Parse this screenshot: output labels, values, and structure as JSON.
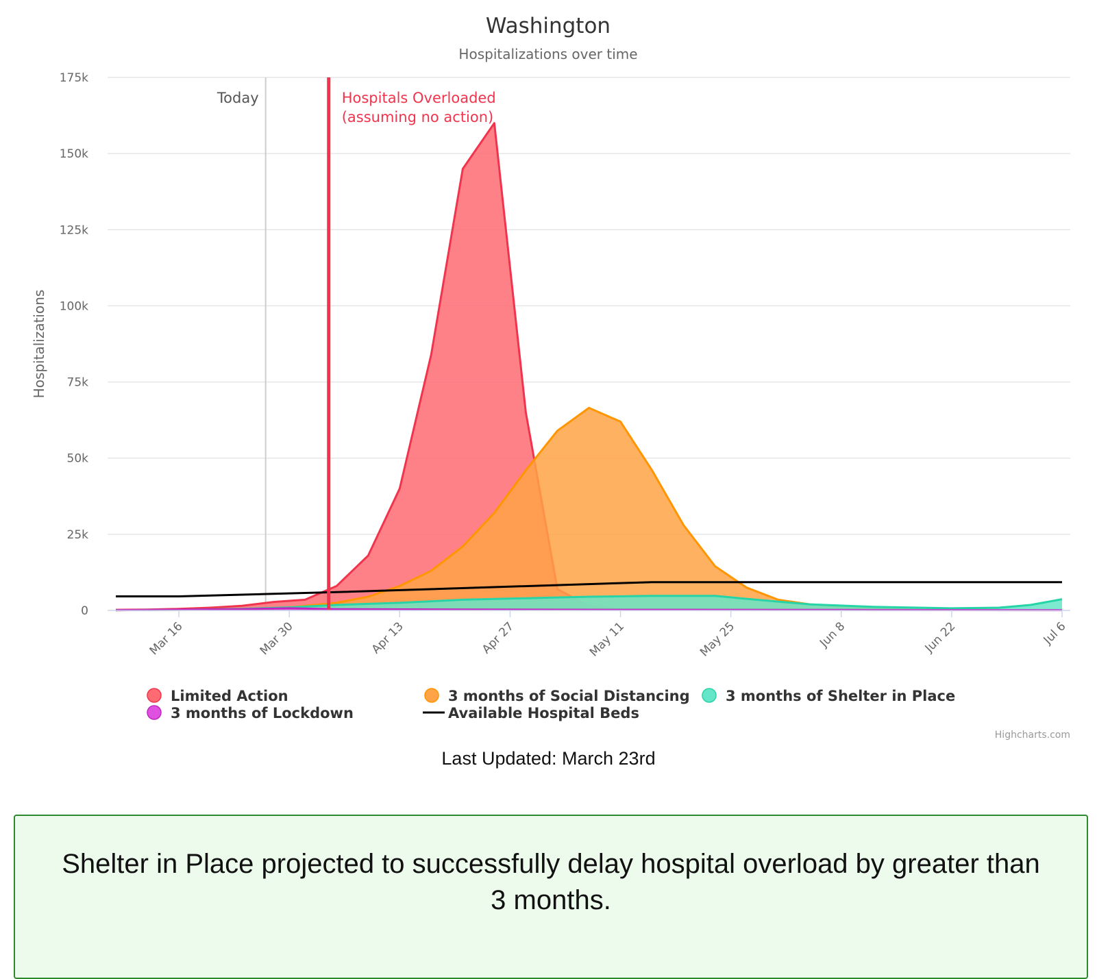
{
  "chart_data": {
    "type": "area",
    "title": "Washington",
    "subtitle": "Hospitalizations over time",
    "ylabel": "Hospitalizations",
    "xlabel": "",
    "ylim": [
      0,
      175000
    ],
    "yticks": [
      0,
      25000,
      50000,
      75000,
      100000,
      125000,
      150000,
      175000
    ],
    "ytick_labels": [
      "0",
      "25k",
      "50k",
      "75k",
      "100k",
      "125k",
      "150k",
      "175k"
    ],
    "x_start": "2020-03-08",
    "x_end": "2020-07-06",
    "xticks": [
      "2020-03-16",
      "2020-03-30",
      "2020-04-13",
      "2020-04-27",
      "2020-05-11",
      "2020-05-25",
      "2020-06-08",
      "2020-06-22",
      "2020-07-06"
    ],
    "xtick_labels": [
      "Mar 16",
      "Mar 30",
      "Apr 13",
      "Apr 27",
      "May 11",
      "May 25",
      "Jun 8",
      "Jun 22",
      "Jul 6"
    ],
    "grid": true,
    "legend_position": "bottom",
    "plot_lines": [
      {
        "label": "Today",
        "date": "2020-03-27",
        "color": "#cccccc"
      },
      {
        "label_lines": [
          "Hospitals Overloaded",
          "(assuming no action)"
        ],
        "date": "2020-04-04",
        "color": "#f1344d"
      }
    ],
    "series": [
      {
        "name": "Limited Action",
        "color": "#ff6b73",
        "line": "#f1344d",
        "kind": "area",
        "x": [
          "2020-03-08",
          "2020-03-12",
          "2020-03-16",
          "2020-03-20",
          "2020-03-24",
          "2020-03-28",
          "2020-04-01",
          "2020-04-05",
          "2020-04-09",
          "2020-04-13",
          "2020-04-17",
          "2020-04-21",
          "2020-04-25",
          "2020-04-29",
          "2020-05-03",
          "2020-05-07",
          "2020-05-11"
        ],
        "y": [
          200,
          300,
          500,
          900,
          1500,
          2800,
          3500,
          8000,
          18000,
          40000,
          84000,
          145000,
          160000,
          65000,
          7000,
          1500,
          300
        ]
      },
      {
        "name": "3 months of Social Distancing",
        "color": "#ffa347",
        "line": "#ff9500",
        "kind": "area",
        "x": [
          "2020-03-08",
          "2020-03-16",
          "2020-03-24",
          "2020-03-30",
          "2020-04-05",
          "2020-04-09",
          "2020-04-13",
          "2020-04-17",
          "2020-04-21",
          "2020-04-25",
          "2020-04-29",
          "2020-05-03",
          "2020-05-07",
          "2020-05-11",
          "2020-05-15",
          "2020-05-19",
          "2020-05-23",
          "2020-05-27",
          "2020-05-31",
          "2020-06-04",
          "2020-06-08",
          "2020-06-14",
          "2020-06-22",
          "2020-06-28"
        ],
        "y": [
          100,
          200,
          500,
          1000,
          2500,
          4500,
          8000,
          13000,
          21000,
          32000,
          46000,
          59000,
          66500,
          62000,
          46000,
          28000,
          14500,
          7500,
          3500,
          2000,
          1200,
          800,
          500,
          400
        ]
      },
      {
        "name": "3 months of Shelter in Place",
        "color": "#66e6c8",
        "line": "#26d4a8",
        "kind": "area",
        "x": [
          "2020-03-08",
          "2020-03-16",
          "2020-03-24",
          "2020-03-30",
          "2020-04-05",
          "2020-04-13",
          "2020-04-21",
          "2020-04-29",
          "2020-05-07",
          "2020-05-15",
          "2020-05-23",
          "2020-05-27",
          "2020-06-04",
          "2020-06-12",
          "2020-06-22",
          "2020-06-28",
          "2020-07-02",
          "2020-07-06"
        ],
        "y": [
          100,
          200,
          500,
          1000,
          1800,
          2500,
          3500,
          4000,
          4500,
          4800,
          4800,
          3800,
          2000,
          1200,
          700,
          900,
          1800,
          3700
        ]
      },
      {
        "name": "3 months of Lockdown",
        "color": "#e051e0",
        "line": "#c026c0",
        "kind": "area",
        "x": [
          "2020-03-08",
          "2020-03-24",
          "2020-03-30",
          "2020-04-05",
          "2020-04-21",
          "2020-05-11",
          "2020-06-08",
          "2020-07-06"
        ],
        "y": [
          100,
          400,
          700,
          400,
          300,
          200,
          150,
          100
        ]
      },
      {
        "name": "Available Hospital Beds",
        "color": "#000000",
        "line": "#000000",
        "kind": "line",
        "x": [
          "2020-03-08",
          "2020-03-16",
          "2020-04-05",
          "2020-05-15",
          "2020-07-06"
        ],
        "y": [
          4600,
          4600,
          6000,
          9300,
          9300
        ]
      }
    ],
    "credits": "Highcharts.com"
  },
  "footer": {
    "last_updated": "Last Updated: March 23rd",
    "message": "Shelter in Place projected to successfully delay hospital overload by greater than 3 months."
  }
}
